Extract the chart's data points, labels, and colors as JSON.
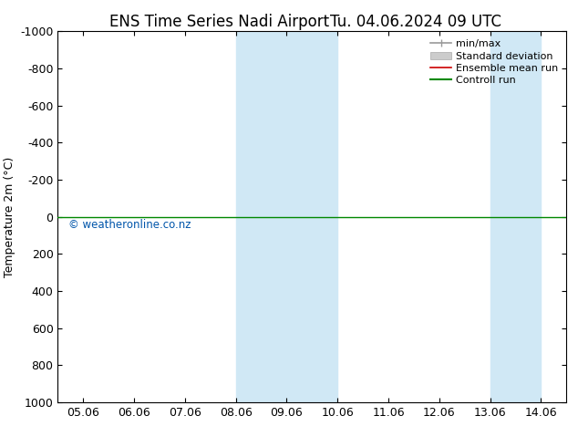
{
  "title_left": "ENS Time Series Nadi Airport",
  "title_right": "Tu. 04.06.2024 09 UTC",
  "ylabel": "Temperature 2m (°C)",
  "ylim_bottom": 1000,
  "ylim_top": -1000,
  "yticks": [
    -1000,
    -800,
    -600,
    -400,
    -200,
    0,
    200,
    400,
    600,
    800,
    1000
  ],
  "xtick_labels": [
    "05.06",
    "06.06",
    "07.06",
    "08.06",
    "09.06",
    "10.06",
    "11.06",
    "12.06",
    "13.06",
    "14.06"
  ],
  "xtick_positions": [
    0,
    1,
    2,
    3,
    4,
    5,
    6,
    7,
    8,
    9
  ],
  "shade_bands": [
    {
      "xmin": 3,
      "xmax": 5,
      "color": "#d0e8f5"
    },
    {
      "xmin": 8,
      "xmax": 9,
      "color": "#d0e8f5"
    }
  ],
  "green_line_y": 0,
  "green_line_color": "#008800",
  "watermark": "© weatheronline.co.nz",
  "watermark_color": "#0055aa",
  "legend_entries": [
    {
      "label": "min/max",
      "color": "#999999",
      "lw": 1.2
    },
    {
      "label": "Standard deviation",
      "color": "#cccccc",
      "lw": 8
    },
    {
      "label": "Ensemble mean run",
      "color": "#cc0000",
      "lw": 1.2
    },
    {
      "label": "Controll run",
      "color": "#008800",
      "lw": 1.5
    }
  ],
  "bg_color": "#ffffff",
  "plot_bg_color": "#ffffff",
  "spine_color": "#000000",
  "title_fontsize": 12,
  "axis_label_fontsize": 9,
  "tick_fontsize": 9,
  "legend_fontsize": 8,
  "xlim_left": -0.5,
  "xlim_right": 9.5
}
